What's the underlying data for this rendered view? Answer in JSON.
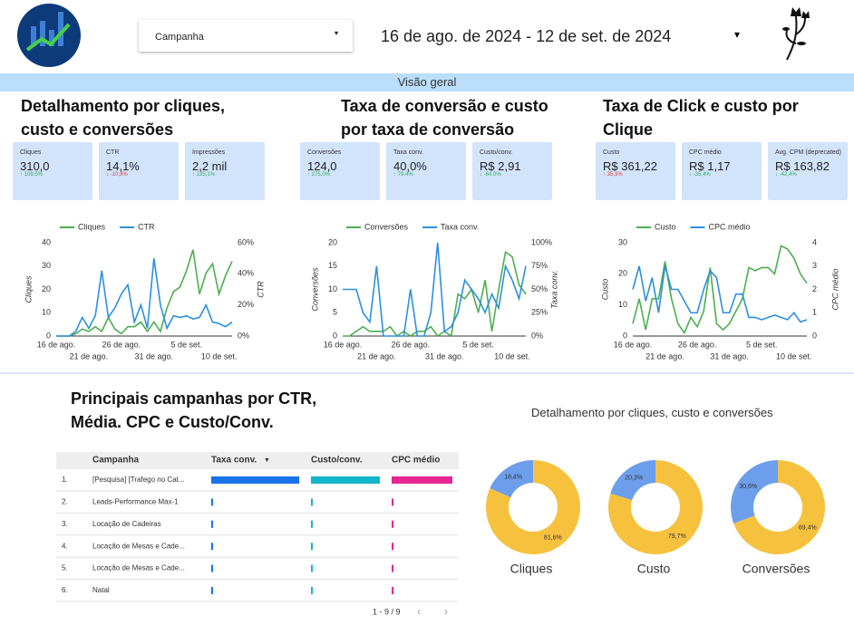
{
  "header": {
    "filter": "Campanha",
    "date_range": "16 de ago. de 2024 - 12 de set. de 2024",
    "banner": "Visão geral"
  },
  "sections": [
    {
      "title": "Detalhamento por cliques, custo e conversões",
      "kpis": [
        {
          "label": "Cliques",
          "value": "310,0",
          "delta": "↑ 109,5%",
          "delta_color": "#34a853"
        },
        {
          "label": "CTR",
          "value": "14,1%",
          "delta": "↓ -10,9%",
          "delta_color": "#ea4335"
        },
        {
          "label": "Impressões",
          "value": "2,2 mil",
          "delta": "↑ 135,1%",
          "delta_color": "#34a853"
        }
      ]
    },
    {
      "title": "Taxa de conversão e custo por taxa de conversão",
      "kpis": [
        {
          "label": "Conversões",
          "value": "124,0",
          "delta": "↑ 275,0%",
          "delta_color": "#34a853"
        },
        {
          "label": "Taxa conv.",
          "value": "40,0%",
          "delta": "↑ 79,4%",
          "delta_color": "#34a853"
        },
        {
          "label": "Custo/conv.",
          "value": "R$ 2,91",
          "delta": "↓ -64,0%",
          "delta_color": "#34a853"
        }
      ]
    },
    {
      "title": "Taxa de Click e custo por Clique",
      "kpis": [
        {
          "label": "Custo",
          "value": "R$ 361,22",
          "delta": "↑ 35,3%",
          "delta_color": "#ea4335"
        },
        {
          "label": "CPC médio",
          "value": "R$ 1,17",
          "delta": "↓ -35,4%",
          "delta_color": "#34a853"
        },
        {
          "label": "Avg. CPM (deprecated)",
          "value": "R$ 163,82",
          "delta": "↓ -42,4%",
          "delta_color": "#34a853"
        }
      ]
    }
  ],
  "chart_data": [
    {
      "type": "line",
      "categories": [
        "16 de ago.",
        null,
        null,
        null,
        null,
        "21 de ago.",
        null,
        null,
        null,
        null,
        "26 de ago.",
        null,
        null,
        null,
        null,
        "31 de ago.",
        null,
        null,
        null,
        null,
        "5 de set.",
        null,
        null,
        null,
        null,
        "10 de set.",
        null,
        null
      ],
      "y_label": "Cliques",
      "y2_label": "CTR",
      "ylim": [
        0,
        40
      ],
      "yticks": [
        0,
        10,
        20,
        30,
        40
      ],
      "y2lim": [
        0,
        60
      ],
      "y2ticks": [
        {
          "value": 0,
          "label": "0%"
        },
        {
          "value": 20,
          "label": "20%"
        },
        {
          "value": 40,
          "label": "40%"
        },
        {
          "value": 60,
          "label": "60%"
        }
      ],
      "series": [
        {
          "name": "Cliques",
          "color": "#4caf50",
          "values": [
            0,
            0,
            0,
            1,
            3,
            2,
            4,
            2,
            8,
            3,
            1,
            4,
            4,
            6,
            2,
            6,
            2,
            12,
            19,
            21,
            28,
            37,
            18,
            27,
            31,
            18,
            26,
            32
          ]
        },
        {
          "name": "CTR",
          "color": "#2d8fe0",
          "axis": "y2",
          "values": [
            0,
            0,
            0,
            3,
            12,
            5,
            13,
            42,
            12,
            18,
            27,
            33,
            9,
            20,
            5,
            50,
            20,
            5,
            13,
            12,
            13,
            11,
            12,
            20,
            9,
            8,
            6,
            9
          ]
        }
      ]
    },
    {
      "type": "line",
      "categories": [
        "16 de ago.",
        null,
        null,
        null,
        null,
        "21 de ago.",
        null,
        null,
        null,
        null,
        "26 de ago.",
        null,
        null,
        null,
        null,
        "31 de ago.",
        null,
        null,
        null,
        null,
        "5 de set.",
        null,
        null,
        null,
        null,
        "10 de set.",
        null,
        null
      ],
      "y_label": "Conversões",
      "y2_label": "Taxa conv.",
      "ylim": [
        0,
        20
      ],
      "yticks": [
        0,
        5,
        10,
        15,
        20
      ],
      "y2lim": [
        0,
        100
      ],
      "y2ticks": [
        {
          "value": 0,
          "label": "0%"
        },
        {
          "value": 25,
          "label": "25%"
        },
        {
          "value": 50,
          "label": "50%"
        },
        {
          "value": 75,
          "label": "75%"
        },
        {
          "value": 100,
          "label": "100%"
        }
      ],
      "series": [
        {
          "name": "Conversões",
          "color": "#4caf50",
          "values": [
            0,
            0,
            1,
            2,
            1,
            1,
            1,
            2,
            0,
            1,
            0,
            1,
            1,
            2,
            0,
            1,
            0,
            9,
            8,
            10,
            5,
            12,
            1,
            10,
            18,
            17,
            11,
            9
          ]
        },
        {
          "name": "Taxa conv.",
          "color": "#2d8fe0",
          "axis": "y2",
          "values": [
            50,
            50,
            50,
            25,
            15,
            75,
            0,
            0,
            0,
            0,
            50,
            0,
            0,
            25,
            100,
            5,
            10,
            25,
            60,
            50,
            40,
            25,
            45,
            30,
            75,
            60,
            40,
            75
          ]
        }
      ]
    },
    {
      "type": "line",
      "categories": [
        "16 de ago.",
        null,
        null,
        null,
        null,
        "21 de ago.",
        null,
        null,
        null,
        null,
        "26 de ago.",
        null,
        null,
        null,
        null,
        "31 de ago.",
        null,
        null,
        null,
        null,
        "5 de set.",
        null,
        null,
        null,
        null,
        "10 de set.",
        null,
        null
      ],
      "y_label": "Custo",
      "y2_label": "CPC médio",
      "ylim": [
        0,
        30
      ],
      "yticks": [
        0,
        10,
        20,
        30
      ],
      "y2lim": [
        0,
        4
      ],
      "y2ticks": [
        0,
        1,
        2,
        3,
        4
      ],
      "series": [
        {
          "name": "Custo",
          "color": "#4caf50",
          "values": [
            4,
            12,
            2,
            12,
            12,
            24,
            12,
            4,
            1,
            6,
            3,
            8,
            22,
            4,
            2,
            4,
            8,
            12,
            22,
            21,
            22,
            22,
            20,
            29,
            28,
            25,
            20,
            17
          ]
        },
        {
          "name": "CPC médio",
          "color": "#2d8fe0",
          "axis": "y2",
          "values": [
            2,
            3,
            1.5,
            2.5,
            1,
            3,
            2,
            2,
            1.5,
            1,
            1,
            2,
            2.8,
            2.5,
            1,
            1,
            1.8,
            1.8,
            0.8,
            0.8,
            0.7,
            0.8,
            0.9,
            0.8,
            0.7,
            1,
            0.6,
            0.7
          ]
        }
      ]
    },
    {
      "type": "pie",
      "title": "Cliques",
      "values": [
        81.6,
        18.4
      ],
      "value_labels": [
        "81,6%",
        "18,4%"
      ],
      "colors": [
        "#f6c23e",
        "#6d9eeb"
      ]
    },
    {
      "type": "pie",
      "title": "Custo",
      "values": [
        79.7,
        20.3
      ],
      "value_labels": [
        "79,7%",
        "20,3%"
      ],
      "colors": [
        "#f6c23e",
        "#6d9eeb"
      ]
    },
    {
      "type": "pie",
      "title": "Conversões",
      "values": [
        69.4,
        30.6
      ],
      "value_labels": [
        "69,4%",
        "30,6%"
      ],
      "colors": [
        "#f6c23e",
        "#6d9eeb"
      ]
    }
  ],
  "donut_group_title": "Detalhamento por cliques, custo e conversões",
  "table": {
    "title": "Principais campanhas por CTR, Média. CPC e Custo/Conv.",
    "columns": [
      "Campanha",
      "Taxa conv.",
      "Custo/conv.",
      "CPC médio"
    ],
    "bar_colors": [
      "#1a73e8",
      "#12b5cb",
      "#e52592"
    ],
    "rows": [
      {
        "rank": "1.",
        "campaign": "[Pesquisa] [Trafego no Cat...",
        "values": [
          38,
          2.9,
          1.2
        ]
      },
      {
        "rank": "2.",
        "campaign": "Leads-Performance Max-1",
        "values": [
          0.8,
          0.06,
          0.025
        ]
      },
      {
        "rank": "3.",
        "campaign": "Locação de Cadeiras",
        "values": [
          0.8,
          0.06,
          0.025
        ]
      },
      {
        "rank": "4.",
        "campaign": "Locação de Mesas e Cade...",
        "values": [
          0.8,
          0.06,
          0.025
        ]
      },
      {
        "rank": "5.",
        "campaign": "Locação de Mesas e Cade...",
        "values": [
          0.8,
          0.06,
          0.025
        ]
      },
      {
        "rank": "6.",
        "campaign": "Natal",
        "values": [
          0.8,
          0.06,
          0.025
        ]
      }
    ],
    "pagination": "1 - 9 / 9"
  }
}
